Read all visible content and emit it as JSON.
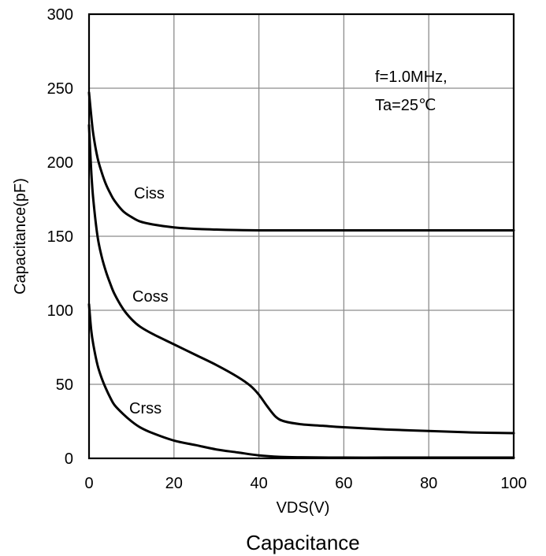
{
  "chart_data": {
    "type": "line",
    "title": "Capacitance",
    "xlabel": "VDS(V)",
    "ylabel": "Capacitance(pF)",
    "xlim": [
      0,
      100
    ],
    "ylim": [
      0,
      300
    ],
    "xticks": [
      0,
      20,
      40,
      60,
      80,
      100
    ],
    "yticks": [
      0,
      50,
      100,
      150,
      200,
      250,
      300
    ],
    "grid": true,
    "annotations": [
      "f=1.0MHz,",
      "Ta=25℃"
    ],
    "series": [
      {
        "name": "Ciss",
        "x": [
          0,
          0.5,
          1,
          2,
          3,
          4,
          5,
          6,
          8,
          10,
          12,
          15,
          20,
          25,
          30,
          35,
          40,
          50,
          60,
          70,
          80,
          90,
          100
        ],
        "y": [
          247,
          232,
          219,
          203,
          193,
          185,
          179,
          174,
          167,
          163,
          160,
          158,
          156,
          155,
          154.5,
          154.2,
          154,
          154,
          154,
          154,
          154,
          154,
          154
        ]
      },
      {
        "name": "Coss",
        "x": [
          0,
          0.5,
          1,
          2,
          3,
          4,
          5,
          6,
          8,
          10,
          12,
          15,
          20,
          25,
          30,
          35,
          38,
          40,
          42,
          44,
          46,
          50,
          55,
          60,
          70,
          80,
          90,
          100
        ],
        "y": [
          225,
          195,
          175,
          150,
          136,
          126,
          118,
          111,
          101,
          94,
          89,
          84,
          77,
          70,
          63,
          55,
          49,
          43,
          35,
          28,
          25,
          23,
          22,
          21,
          19.5,
          18.5,
          17.5,
          17
        ]
      },
      {
        "name": "Crss",
        "x": [
          0,
          0.5,
          1,
          2,
          3,
          4,
          5,
          6,
          8,
          10,
          12,
          15,
          20,
          25,
          30,
          35,
          40,
          45,
          50,
          60,
          70,
          80,
          90,
          100
        ],
        "y": [
          104,
          87,
          77,
          63,
          54,
          47,
          41,
          36,
          30,
          25,
          21,
          17,
          12,
          9,
          6,
          4,
          2,
          1,
          0.7,
          0.5,
          0.5,
          0.5,
          0.5,
          0.5
        ]
      }
    ]
  }
}
